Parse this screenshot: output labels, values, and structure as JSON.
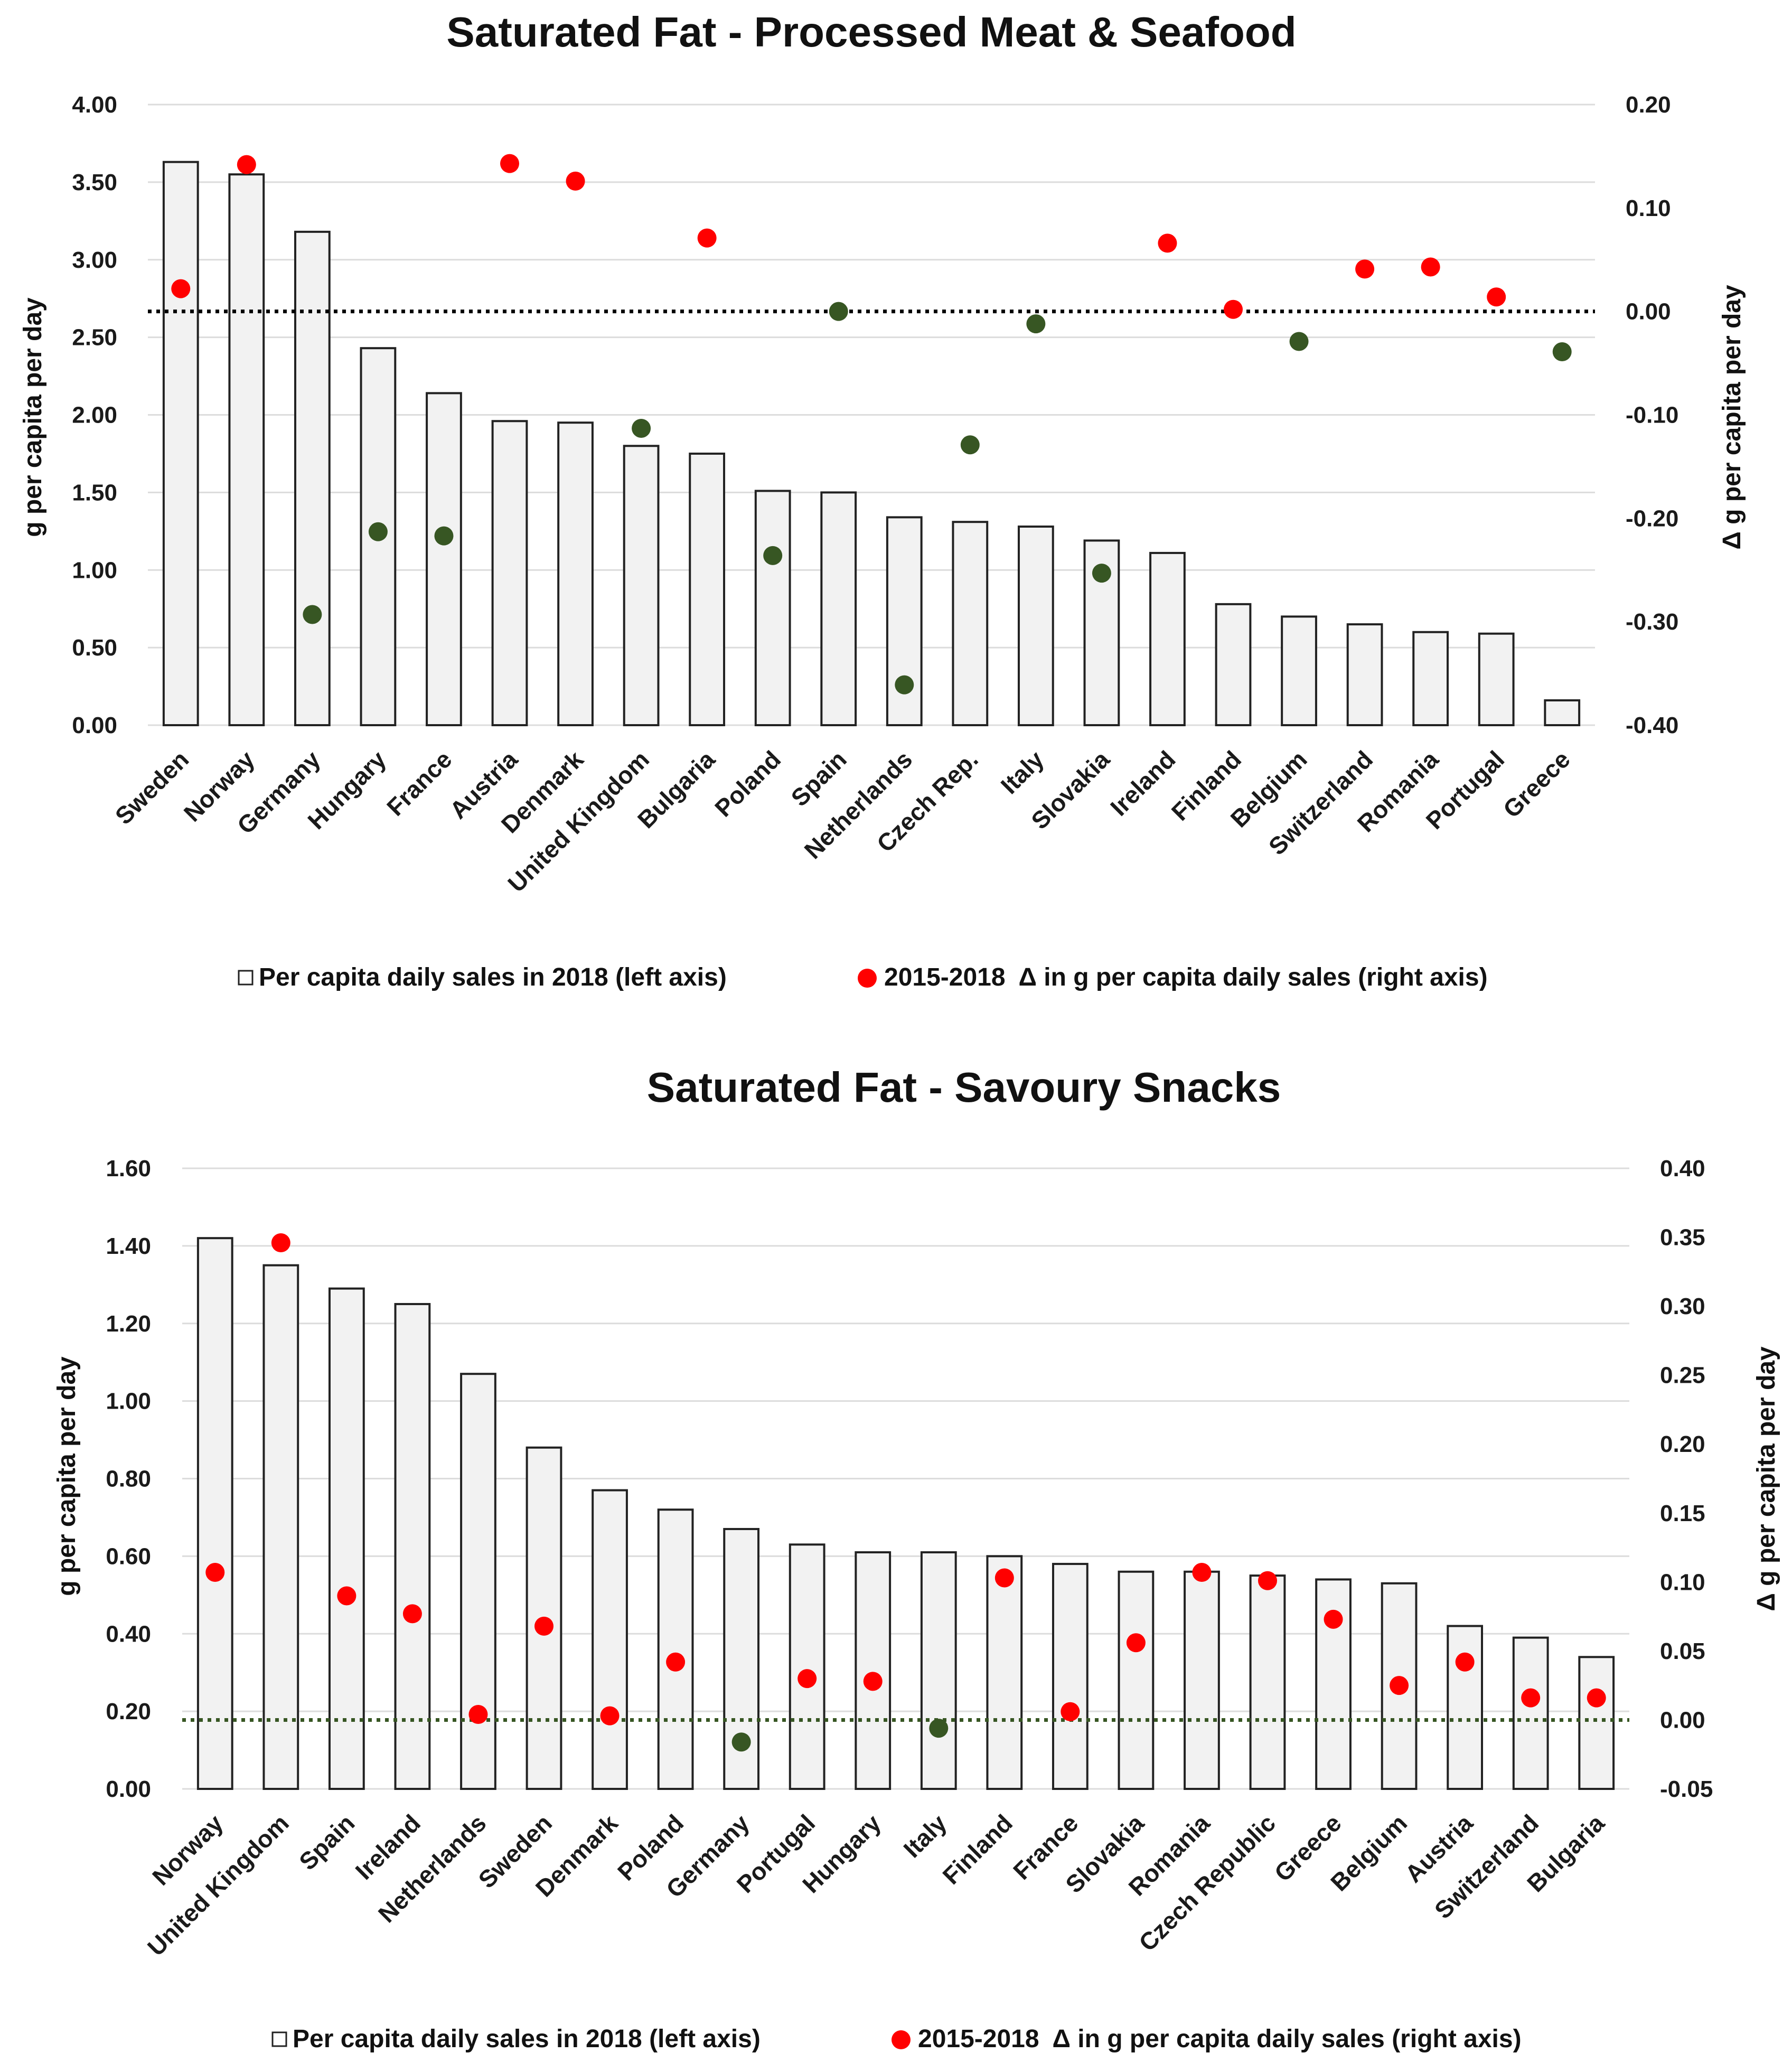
{
  "chart_data": [
    {
      "type": "bar",
      "title": "Saturated Fat - Processed Meat & Seafood",
      "ylabel": "g per capita per day",
      "y2label": "Δ g per capita per day",
      "ylim": [
        0,
        4.0
      ],
      "y2lim": [
        -0.4,
        0.2
      ],
      "yticks": [
        "0.00",
        "0.50",
        "1.00",
        "1.50",
        "2.00",
        "2.50",
        "3.00",
        "3.50",
        "4.00"
      ],
      "y2ticks": [
        "-0.40",
        "-0.30",
        "-0.20",
        "-0.10",
        "0.00",
        "0.10",
        "0.20"
      ],
      "categories": [
        "Sweden",
        "Norway",
        "Germany",
        "Hungary",
        "France",
        "Austria",
        "Denmark",
        "United Kingdom",
        "Bulgaria",
        "Poland",
        "Spain",
        "Netherlands",
        "Czech Rep.",
        "Italy",
        "Slovakia",
        "Ireland",
        "Finland",
        "Belgium",
        "Switzerland",
        "Romania",
        "Portugal",
        "Greece"
      ],
      "series": [
        {
          "name": "Per capita daily sales in 2018 (left axis)",
          "axis": "left",
          "values": [
            3.63,
            3.55,
            3.18,
            2.43,
            2.14,
            1.96,
            1.95,
            1.8,
            1.75,
            1.51,
            1.5,
            1.34,
            1.31,
            1.28,
            1.19,
            1.11,
            0.78,
            0.7,
            0.65,
            0.6,
            0.59,
            0.16
          ]
        },
        {
          "name": "2015-2018  Δ in g per capita daily sales (right axis)",
          "axis": "right",
          "values": [
            0.022,
            0.142,
            -0.293,
            -0.213,
            -0.217,
            0.143,
            0.126,
            -0.113,
            0.071,
            -0.236,
            0.0,
            -0.361,
            -0.129,
            -0.012,
            -0.253,
            0.066,
            0.002,
            -0.029,
            0.041,
            0.043,
            0.014,
            -0.039
          ]
        }
      ],
      "marker_colors": {
        "positive": "#ff0000",
        "negative": "#375623"
      },
      "reference_line": {
        "value": 0.0,
        "axis": "right",
        "color": "#000000",
        "style": "dotted"
      },
      "grid": true,
      "legend_position": "bottom"
    },
    {
      "type": "bar",
      "title": "Saturated Fat - Savoury Snacks",
      "ylabel": "g per capita per day",
      "y2label": "Δ g per capita per day",
      "ylim": [
        0,
        1.6
      ],
      "y2lim": [
        -0.05,
        0.4
      ],
      "yticks": [
        "0.00",
        "0.20",
        "0.40",
        "0.60",
        "0.80",
        "1.00",
        "1.20",
        "1.40",
        "1.60"
      ],
      "y2ticks": [
        "-0.05",
        "0.00",
        "0.05",
        "0.10",
        "0.15",
        "0.20",
        "0.25",
        "0.30",
        "0.35",
        "0.40"
      ],
      "categories": [
        "Norway",
        "United Kingdom",
        "Spain",
        "Ireland",
        "Netherlands",
        "Sweden",
        "Denmark",
        "Poland",
        "Germany",
        "Portugal",
        "Hungary",
        "Italy",
        "Finland",
        "France",
        "Slovakia",
        "Romania",
        "Czech Republic",
        "Greece",
        "Belgium",
        "Austria",
        "Switzerland",
        "Bulgaria"
      ],
      "series": [
        {
          "name": "Per capita daily sales in 2018 (left axis)",
          "axis": "left",
          "values": [
            1.42,
            1.35,
            1.29,
            1.25,
            1.07,
            0.88,
            0.77,
            0.72,
            0.67,
            0.63,
            0.61,
            0.61,
            0.6,
            0.58,
            0.56,
            0.56,
            0.55,
            0.54,
            0.53,
            0.42,
            0.39,
            0.34
          ]
        },
        {
          "name": "2015-2018  Δ in g per capita daily sales (right axis)",
          "axis": "right",
          "values": [
            0.107,
            0.346,
            0.09,
            0.077,
            0.004,
            0.068,
            0.003,
            0.042,
            -0.016,
            0.03,
            0.028,
            -0.006,
            0.103,
            0.006,
            0.056,
            0.107,
            0.101,
            0.073,
            0.025,
            0.042,
            0.016,
            0.016
          ]
        }
      ],
      "marker_colors": {
        "positive": "#ff0000",
        "negative": "#375623"
      },
      "reference_line": {
        "value": 0.0,
        "axis": "right",
        "color": "#375623",
        "style": "dotted"
      },
      "grid": true,
      "legend_position": "bottom"
    }
  ]
}
